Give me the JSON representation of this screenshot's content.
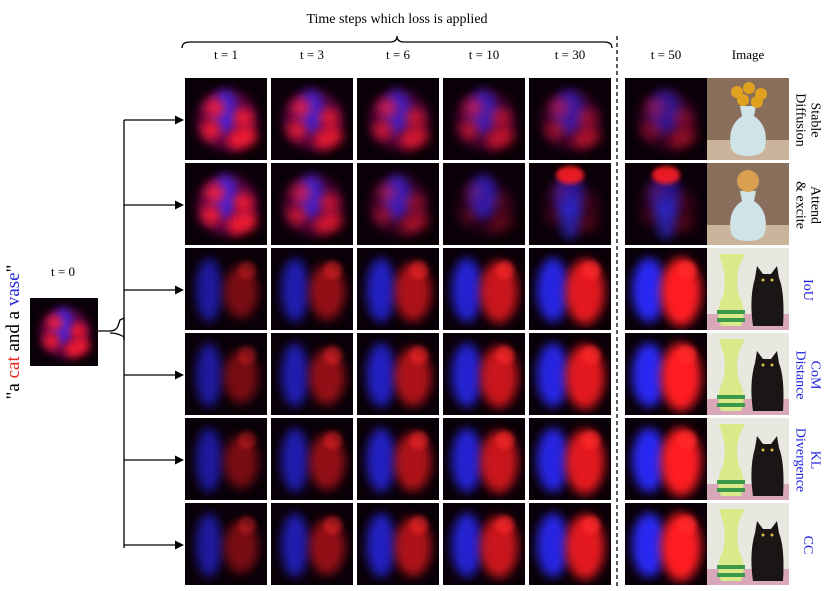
{
  "header": {
    "title": "Time steps which loss is applied"
  },
  "columns": [
    "t = 1",
    "t = 3",
    "t = 6",
    "t = 10",
    "t = 30",
    "t = 50",
    "Image"
  ],
  "start": {
    "label": "t = 0"
  },
  "prompt": {
    "parts": [
      {
        "text": "\"a ",
        "color": "#000000"
      },
      {
        "text": "cat",
        "color": "#e8261f"
      },
      {
        "text": " and  a ",
        "color": "#000000"
      },
      {
        "text": "vase",
        "color": "#2b2bd9"
      },
      {
        "text": "\"",
        "color": "#000000"
      }
    ]
  },
  "rows": [
    {
      "label_lines": [
        "Stable",
        "Diffusion"
      ],
      "color": "#000000"
    },
    {
      "label_lines": [
        "Attend",
        "& excite"
      ],
      "color": "#000000"
    },
    {
      "label_lines": [
        "IoU"
      ],
      "color": "#2020e0"
    },
    {
      "label_lines": [
        "CoM",
        "Distance"
      ],
      "color": "#2020e0"
    },
    {
      "label_lines": [
        "KL",
        "Divergence"
      ],
      "color": "#2020e0"
    },
    {
      "label_lines": [
        "CC"
      ],
      "color": "#2020e0"
    }
  ]
}
